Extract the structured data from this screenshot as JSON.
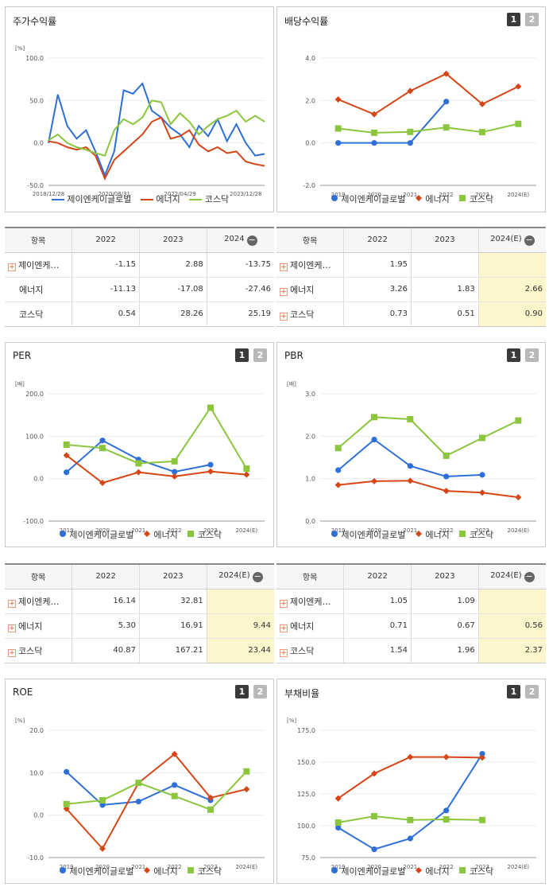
{
  "series_names": [
    "제이엔케이글로벌",
    "에너지",
    "코스닥"
  ],
  "colors": {
    "s0": "#2f6fd8",
    "s1": "#d64516",
    "s2": "#8cc63f",
    "highlight": "#fdf5cc"
  },
  "years": [
    "2019",
    "2020",
    "2021",
    "2022",
    "2023",
    "2024(E)"
  ],
  "stock": {
    "title": "주가수익률",
    "unit": "[%]",
    "yticks": [
      "100.0",
      "50.0",
      "0.0",
      "-50.0"
    ],
    "xticks": [
      "2018/12/28",
      "2020/08/31",
      "2022/04/29",
      "2023/12/28"
    ],
    "table": {
      "header": [
        "항목",
        "2022",
        "2023",
        "2024"
      ],
      "rows": [
        {
          "name": "제이엔케…",
          "plus": true,
          "cells": [
            "-1.15",
            "2.88",
            "-13.75"
          ]
        },
        {
          "name": "에너지",
          "plus": false,
          "cells": [
            "-11.13",
            "-17.08",
            "-27.46"
          ]
        },
        {
          "name": "코스닥",
          "plus": false,
          "cells": [
            "0.54",
            "28.26",
            "25.19"
          ]
        }
      ]
    }
  },
  "dividend": {
    "title": "배당수익률",
    "unit": "",
    "yticks": [
      "4.0",
      "2.0",
      "0.0",
      "-2.0"
    ],
    "table": {
      "header": [
        "항목",
        "2022",
        "2023",
        "2024(E)"
      ],
      "rows": [
        {
          "name": "제이엔케…",
          "plus": true,
          "cells": [
            "1.95",
            "",
            ""
          ]
        },
        {
          "name": "에너지",
          "plus": true,
          "cells": [
            "3.26",
            "1.83",
            "2.66"
          ]
        },
        {
          "name": "코스닥",
          "plus": true,
          "cells": [
            "0.73",
            "0.51",
            "0.90"
          ]
        }
      ]
    }
  },
  "per": {
    "title": "PER",
    "unit": "[배]",
    "yticks": [
      "200.0",
      "100.0",
      "0.0",
      "-100.0"
    ],
    "table": {
      "header": [
        "항목",
        "2022",
        "2023",
        "2024(E)"
      ],
      "rows": [
        {
          "name": "제이엔케…",
          "plus": true,
          "cells": [
            "16.14",
            "32.81",
            ""
          ]
        },
        {
          "name": "에너지",
          "plus": true,
          "cells": [
            "5.30",
            "16.91",
            "9.44"
          ]
        },
        {
          "name": "코스닥",
          "plus": true,
          "cells": [
            "40.87",
            "167.21",
            "23.44"
          ]
        }
      ]
    }
  },
  "pbr": {
    "title": "PBR",
    "unit": "[배]",
    "yticks": [
      "3.0",
      "2.0",
      "1.0",
      "0.0"
    ],
    "table": {
      "header": [
        "항목",
        "2022",
        "2023",
        "2024(E)"
      ],
      "rows": [
        {
          "name": "제이엔케…",
          "plus": true,
          "cells": [
            "1.05",
            "1.09",
            ""
          ]
        },
        {
          "name": "에너지",
          "plus": true,
          "cells": [
            "0.71",
            "0.67",
            "0.56"
          ]
        },
        {
          "name": "코스닥",
          "plus": true,
          "cells": [
            "1.54",
            "1.96",
            "2.37"
          ]
        }
      ]
    }
  },
  "roe": {
    "title": "ROE",
    "unit": "[%]",
    "yticks": [
      "20.0",
      "10.0",
      "0.0",
      "-10.0"
    ]
  },
  "debt": {
    "title": "부채비율",
    "unit": "[%]",
    "yticks": [
      "175.0",
      "150.0",
      "125.0",
      "100.0",
      "75.0"
    ]
  },
  "chart_data": [
    {
      "type": "line",
      "title": "주가수익률",
      "ylabel": "[%]",
      "ylim": [
        -50,
        100
      ],
      "x": [
        "2018/12/28",
        "2019/03",
        "2019/06",
        "2019/09",
        "2019/12",
        "2020/03",
        "2020/06",
        "2020/08/31",
        "2020/12",
        "2021/03",
        "2021/06",
        "2021/09",
        "2021/12",
        "2022/03",
        "2022/04/29",
        "2022/07",
        "2022/10",
        "2023/01",
        "2023/04",
        "2023/07",
        "2023/10",
        "2023/12/28",
        "2024/03",
        "2024/06"
      ],
      "series": [
        {
          "name": "제이엔케이글로벌",
          "values": [
            0,
            57,
            20,
            5,
            15,
            -10,
            -38,
            -10,
            62,
            58,
            70,
            38,
            30,
            18,
            10,
            -5,
            20,
            8,
            28,
            2,
            22,
            0,
            -15,
            -13
          ]
        },
        {
          "name": "에너지",
          "values": [
            2,
            0,
            -5,
            -8,
            -5,
            -15,
            -42,
            -20,
            -10,
            0,
            10,
            25,
            30,
            5,
            8,
            15,
            -2,
            -10,
            -5,
            -12,
            -10,
            -22,
            -25,
            -27
          ]
        },
        {
          "name": "코스닥",
          "values": [
            3,
            10,
            0,
            -5,
            -8,
            -12,
            -15,
            15,
            28,
            22,
            30,
            50,
            48,
            22,
            35,
            25,
            10,
            20,
            28,
            32,
            38,
            25,
            32,
            25
          ]
        }
      ]
    },
    {
      "type": "line",
      "title": "배당수익률",
      "ylim": [
        -2,
        4
      ],
      "categories": [
        "2019",
        "2020",
        "2021",
        "2022",
        "2023",
        "2024(E)"
      ],
      "series": [
        {
          "name": "제이엔케이글로벌",
          "values": [
            0,
            0,
            0,
            1.95,
            null,
            null
          ]
        },
        {
          "name": "에너지",
          "values": [
            2.05,
            1.35,
            2.45,
            3.26,
            1.83,
            2.66
          ]
        },
        {
          "name": "코스닥",
          "values": [
            0.68,
            0.48,
            0.52,
            0.73,
            0.51,
            0.9
          ]
        }
      ]
    },
    {
      "type": "line",
      "title": "PER",
      "ylabel": "[배]",
      "ylim": [
        -100,
        200
      ],
      "categories": [
        "2019",
        "2020",
        "2021",
        "2022",
        "2023",
        "2024(E)"
      ],
      "series": [
        {
          "name": "제이엔케이글로벌",
          "values": [
            15,
            90,
            45,
            16.14,
            32.81,
            null
          ]
        },
        {
          "name": "에너지",
          "values": [
            55,
            -10,
            15,
            5.3,
            16.91,
            9.44
          ]
        },
        {
          "name": "코스닥",
          "values": [
            80,
            72,
            36,
            40.87,
            167.21,
            23.44
          ]
        }
      ]
    },
    {
      "type": "line",
      "title": "PBR",
      "ylabel": "[배]",
      "ylim": [
        0,
        3
      ],
      "categories": [
        "2019",
        "2020",
        "2021",
        "2022",
        "2023",
        "2024(E)"
      ],
      "series": [
        {
          "name": "제이엔케이글로벌",
          "values": [
            1.2,
            1.92,
            1.3,
            1.05,
            1.09,
            null
          ]
        },
        {
          "name": "에너지",
          "values": [
            0.85,
            0.94,
            0.95,
            0.71,
            0.67,
            0.56
          ]
        },
        {
          "name": "코스닥",
          "values": [
            1.72,
            2.45,
            2.4,
            1.54,
            1.96,
            2.37
          ]
        }
      ]
    },
    {
      "type": "line",
      "title": "ROE",
      "ylabel": "[%]",
      "ylim": [
        -10,
        20
      ],
      "categories": [
        "2019",
        "2020",
        "2021",
        "2022",
        "2023",
        "2024(E)"
      ],
      "series": [
        {
          "name": "제이엔케이글로벌",
          "values": [
            10.2,
            2.4,
            3.2,
            7.1,
            3.5,
            null
          ]
        },
        {
          "name": "에너지",
          "values": [
            1.5,
            -7.9,
            7.6,
            14.4,
            4.1,
            6.1
          ]
        },
        {
          "name": "코스닥",
          "values": [
            2.6,
            3.5,
            7.6,
            4.5,
            1.3,
            10.3
          ]
        }
      ]
    },
    {
      "type": "line",
      "title": "부채비율",
      "ylabel": "[%]",
      "ylim": [
        75,
        175
      ],
      "categories": [
        "2019",
        "2020",
        "2021",
        "2022",
        "2023",
        "2024(E)"
      ],
      "series": [
        {
          "name": "제이엔케이글로벌",
          "values": [
            98.5,
            81.5,
            90,
            112,
            156.5,
            null
          ]
        },
        {
          "name": "에너지",
          "values": [
            121.5,
            141,
            154,
            154,
            153.5,
            null
          ]
        },
        {
          "name": "코스닥",
          "values": [
            102.5,
            107.5,
            104.5,
            105,
            104.5,
            null
          ]
        }
      ]
    }
  ]
}
